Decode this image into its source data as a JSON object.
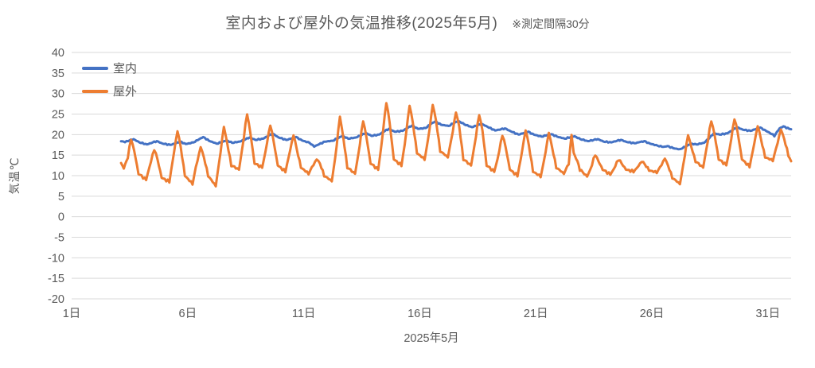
{
  "title": {
    "main": "室内および屋外の気温推移(2025年5月)",
    "note": "※測定間隔30分"
  },
  "y_axis": {
    "title": "気温℃",
    "ticks": [
      40,
      35,
      30,
      25,
      20,
      15,
      10,
      5,
      0,
      -5,
      -10,
      -15,
      -20
    ],
    "min": -20,
    "max": 40
  },
  "x_axis": {
    "title": "2025年5月",
    "tick_labels": [
      "1日",
      "6日",
      "11日",
      "16日",
      "21日",
      "26日",
      "31日"
    ],
    "tick_days": [
      1,
      6,
      11,
      16,
      21,
      26,
      31
    ],
    "range_days": [
      1,
      32
    ]
  },
  "colors": {
    "indoor": "#4472C4",
    "outdoor": "#ED7D31",
    "grid": "#D9D9D9",
    "text": "#595959",
    "background": "#FFFFFF"
  },
  "chart_data": {
    "type": "line",
    "title": "室内および屋外の気温推移(2025年5月) ※測定間隔30分",
    "xlabel": "2025年5月",
    "ylabel": "気温℃",
    "ylim": [
      -20,
      40
    ],
    "xlim_days": [
      1,
      32
    ],
    "grid": "horizontal",
    "legend_position": "top-left-inside",
    "x_unit": "day-of-May-2025-fractional",
    "series": [
      {
        "name": "室内",
        "color": "#4472C4",
        "stroke_width": 3,
        "jitter": 0.15,
        "points": [
          [
            3.13,
            18.4
          ],
          [
            3.3,
            18.2
          ],
          [
            3.5,
            18.6
          ],
          [
            3.67,
            18.9
          ],
          [
            3.92,
            18.1
          ],
          [
            4.25,
            17.6
          ],
          [
            4.5,
            18.1
          ],
          [
            4.67,
            18.4
          ],
          [
            4.92,
            17.8
          ],
          [
            5.25,
            17.5
          ],
          [
            5.5,
            17.9
          ],
          [
            5.67,
            18.3
          ],
          [
            5.92,
            17.7
          ],
          [
            6.25,
            18.1
          ],
          [
            6.5,
            18.9
          ],
          [
            6.67,
            19.4
          ],
          [
            6.92,
            18.5
          ],
          [
            7.25,
            17.8
          ],
          [
            7.5,
            18.2
          ],
          [
            7.67,
            18.6
          ],
          [
            7.92,
            18.0
          ],
          [
            8.25,
            18.3
          ],
          [
            8.5,
            18.9
          ],
          [
            8.67,
            19.3
          ],
          [
            8.92,
            18.7
          ],
          [
            9.25,
            19.0
          ],
          [
            9.5,
            19.8
          ],
          [
            9.67,
            20.2
          ],
          [
            9.92,
            19.3
          ],
          [
            10.25,
            18.7
          ],
          [
            10.5,
            19.1
          ],
          [
            10.67,
            19.4
          ],
          [
            10.92,
            18.6
          ],
          [
            11.25,
            18.0
          ],
          [
            11.45,
            17.1
          ],
          [
            11.6,
            17.5
          ],
          [
            11.92,
            18.3
          ],
          [
            12.25,
            18.5
          ],
          [
            12.5,
            19.2
          ],
          [
            12.67,
            19.7
          ],
          [
            12.92,
            19.0
          ],
          [
            13.25,
            19.3
          ],
          [
            13.5,
            19.9
          ],
          [
            13.67,
            20.4
          ],
          [
            13.92,
            19.7
          ],
          [
            14.25,
            20.0
          ],
          [
            14.5,
            20.9
          ],
          [
            14.67,
            21.4
          ],
          [
            14.92,
            20.7
          ],
          [
            15.25,
            20.9
          ],
          [
            15.5,
            21.7
          ],
          [
            15.67,
            22.2
          ],
          [
            15.92,
            21.4
          ],
          [
            16.25,
            21.6
          ],
          [
            16.5,
            22.7
          ],
          [
            16.67,
            23.2
          ],
          [
            16.92,
            22.4
          ],
          [
            17.25,
            22.1
          ],
          [
            17.5,
            22.9
          ],
          [
            17.67,
            23.3
          ],
          [
            17.92,
            22.5
          ],
          [
            18.25,
            21.8
          ],
          [
            18.5,
            22.3
          ],
          [
            18.67,
            22.6
          ],
          [
            18.92,
            21.9
          ],
          [
            19.25,
            21.0
          ],
          [
            19.5,
            21.3
          ],
          [
            19.67,
            21.5
          ],
          [
            19.92,
            20.8
          ],
          [
            20.25,
            20.0
          ],
          [
            20.5,
            20.4
          ],
          [
            20.67,
            20.7
          ],
          [
            20.92,
            20.0
          ],
          [
            21.25,
            19.5
          ],
          [
            21.5,
            19.9
          ],
          [
            21.67,
            20.1
          ],
          [
            21.92,
            19.5
          ],
          [
            22.25,
            19.0
          ],
          [
            22.5,
            19.4
          ],
          [
            22.67,
            19.6
          ],
          [
            22.92,
            18.9
          ],
          [
            23.25,
            18.4
          ],
          [
            23.5,
            18.7
          ],
          [
            23.67,
            18.9
          ],
          [
            23.92,
            18.3
          ],
          [
            24.25,
            18.1
          ],
          [
            24.5,
            18.5
          ],
          [
            24.67,
            18.7
          ],
          [
            24.92,
            18.2
          ],
          [
            25.25,
            17.9
          ],
          [
            25.5,
            18.2
          ],
          [
            25.67,
            18.4
          ],
          [
            25.92,
            17.8
          ],
          [
            26.25,
            17.3
          ],
          [
            26.5,
            17.0
          ],
          [
            26.67,
            17.2
          ],
          [
            26.92,
            16.7
          ],
          [
            27.2,
            16.4
          ],
          [
            27.5,
            17.2
          ],
          [
            27.67,
            17.8
          ],
          [
            27.92,
            17.6
          ],
          [
            28.25,
            18.0
          ],
          [
            28.5,
            19.3
          ],
          [
            28.67,
            20.3
          ],
          [
            28.92,
            20.0
          ],
          [
            29.25,
            20.3
          ],
          [
            29.5,
            21.2
          ],
          [
            29.67,
            21.8
          ],
          [
            29.92,
            21.2
          ],
          [
            30.25,
            20.9
          ],
          [
            30.5,
            21.4
          ],
          [
            30.67,
            21.7
          ],
          [
            30.92,
            20.9
          ],
          [
            31.15,
            20.2
          ],
          [
            31.28,
            19.7
          ],
          [
            31.5,
            21.5
          ],
          [
            31.67,
            22.0
          ],
          [
            31.92,
            21.4
          ],
          [
            32.0,
            21.3
          ]
        ]
      },
      {
        "name": "屋外",
        "color": "#ED7D31",
        "stroke_width": 3,
        "jitter": 0.35,
        "points": [
          [
            3.13,
            13.0
          ],
          [
            3.25,
            11.8
          ],
          [
            3.42,
            14.5
          ],
          [
            3.56,
            19.0
          ],
          [
            3.7,
            16.0
          ],
          [
            3.88,
            10.5
          ],
          [
            4.21,
            9.0
          ],
          [
            4.35,
            12.0
          ],
          [
            4.56,
            16.5
          ],
          [
            4.7,
            14.0
          ],
          [
            4.88,
            9.5
          ],
          [
            5.21,
            8.5
          ],
          [
            5.35,
            13.5
          ],
          [
            5.56,
            21.0
          ],
          [
            5.7,
            17.0
          ],
          [
            5.88,
            10.0
          ],
          [
            6.21,
            8.0
          ],
          [
            6.35,
            12.0
          ],
          [
            6.56,
            17.0
          ],
          [
            6.7,
            14.5
          ],
          [
            6.88,
            10.0
          ],
          [
            7.21,
            7.5
          ],
          [
            7.35,
            13.0
          ],
          [
            7.56,
            22.0
          ],
          [
            7.7,
            18.0
          ],
          [
            7.88,
            12.5
          ],
          [
            8.21,
            11.5
          ],
          [
            8.35,
            16.5
          ],
          [
            8.56,
            25.2
          ],
          [
            8.7,
            20.5
          ],
          [
            8.88,
            13.0
          ],
          [
            9.21,
            12.0
          ],
          [
            9.35,
            15.8
          ],
          [
            9.56,
            22.5
          ],
          [
            9.7,
            18.5
          ],
          [
            9.88,
            12.5
          ],
          [
            10.21,
            11.0
          ],
          [
            10.35,
            14.5
          ],
          [
            10.56,
            20.0
          ],
          [
            10.7,
            16.5
          ],
          [
            10.88,
            12.0
          ],
          [
            11.21,
            10.5
          ],
          [
            11.35,
            12.0
          ],
          [
            11.56,
            14.0
          ],
          [
            11.7,
            13.0
          ],
          [
            11.88,
            10.0
          ],
          [
            12.21,
            8.7
          ],
          [
            12.35,
            14.0
          ],
          [
            12.56,
            24.5
          ],
          [
            12.7,
            19.5
          ],
          [
            12.88,
            12.0
          ],
          [
            13.21,
            10.5
          ],
          [
            13.35,
            15.0
          ],
          [
            13.56,
            23.5
          ],
          [
            13.7,
            19.5
          ],
          [
            13.88,
            13.0
          ],
          [
            14.21,
            11.5
          ],
          [
            14.35,
            17.5
          ],
          [
            14.56,
            28.0
          ],
          [
            14.7,
            23.0
          ],
          [
            14.88,
            14.0
          ],
          [
            15.21,
            12.5
          ],
          [
            15.35,
            17.5
          ],
          [
            15.56,
            27.2
          ],
          [
            15.7,
            23.0
          ],
          [
            15.88,
            15.5
          ],
          [
            16.21,
            14.0
          ],
          [
            16.35,
            18.5
          ],
          [
            16.56,
            27.3
          ],
          [
            16.7,
            23.5
          ],
          [
            16.88,
            16.0
          ],
          [
            17.21,
            14.5
          ],
          [
            17.35,
            18.5
          ],
          [
            17.56,
            25.5
          ],
          [
            17.7,
            22.0
          ],
          [
            17.88,
            14.0
          ],
          [
            18.21,
            12.5
          ],
          [
            18.35,
            17.0
          ],
          [
            18.56,
            25.0
          ],
          [
            18.7,
            21.0
          ],
          [
            18.88,
            12.5
          ],
          [
            19.21,
            11.0
          ],
          [
            19.35,
            14.0
          ],
          [
            19.56,
            20.0
          ],
          [
            19.7,
            17.0
          ],
          [
            19.88,
            11.5
          ],
          [
            20.21,
            10.0
          ],
          [
            20.35,
            14.0
          ],
          [
            20.56,
            21.2
          ],
          [
            20.7,
            17.5
          ],
          [
            20.88,
            11.0
          ],
          [
            21.21,
            9.8
          ],
          [
            21.35,
            13.5
          ],
          [
            21.56,
            20.5
          ],
          [
            21.7,
            17.0
          ],
          [
            21.88,
            12.0
          ],
          [
            22.21,
            10.5
          ],
          [
            22.42,
            13.0
          ],
          [
            22.54,
            20.0
          ],
          [
            22.63,
            15.5
          ],
          [
            22.79,
            13.5
          ],
          [
            22.9,
            11.5
          ],
          [
            23.21,
            9.8
          ],
          [
            23.35,
            11.5
          ],
          [
            23.56,
            15.2
          ],
          [
            23.7,
            13.5
          ],
          [
            23.88,
            11.5
          ],
          [
            24.21,
            10.3
          ],
          [
            24.35,
            11.5
          ],
          [
            24.56,
            14.0
          ],
          [
            24.7,
            13.0
          ],
          [
            24.88,
            11.5
          ],
          [
            25.21,
            11.0
          ],
          [
            25.35,
            11.8
          ],
          [
            25.56,
            13.5
          ],
          [
            25.7,
            12.8
          ],
          [
            25.88,
            11.3
          ],
          [
            26.21,
            10.8
          ],
          [
            26.35,
            12.0
          ],
          [
            26.56,
            14.2
          ],
          [
            26.7,
            12.5
          ],
          [
            26.88,
            9.5
          ],
          [
            27.21,
            8.0
          ],
          [
            27.35,
            12.5
          ],
          [
            27.56,
            20.0
          ],
          [
            27.7,
            17.0
          ],
          [
            27.88,
            13.5
          ],
          [
            28.21,
            12.0
          ],
          [
            28.35,
            16.5
          ],
          [
            28.56,
            23.5
          ],
          [
            28.7,
            20.0
          ],
          [
            28.88,
            14.0
          ],
          [
            29.21,
            12.6
          ],
          [
            29.35,
            16.5
          ],
          [
            29.56,
            24.0
          ],
          [
            29.7,
            20.5
          ],
          [
            29.88,
            14.0
          ],
          [
            30.21,
            12.2
          ],
          [
            30.35,
            16.0
          ],
          [
            30.56,
            22.2
          ],
          [
            30.7,
            19.0
          ],
          [
            30.88,
            14.5
          ],
          [
            31.21,
            13.7
          ],
          [
            31.35,
            16.5
          ],
          [
            31.56,
            21.3
          ],
          [
            31.7,
            19.0
          ],
          [
            31.88,
            15.0
          ],
          [
            32.0,
            13.5
          ]
        ]
      }
    ]
  }
}
